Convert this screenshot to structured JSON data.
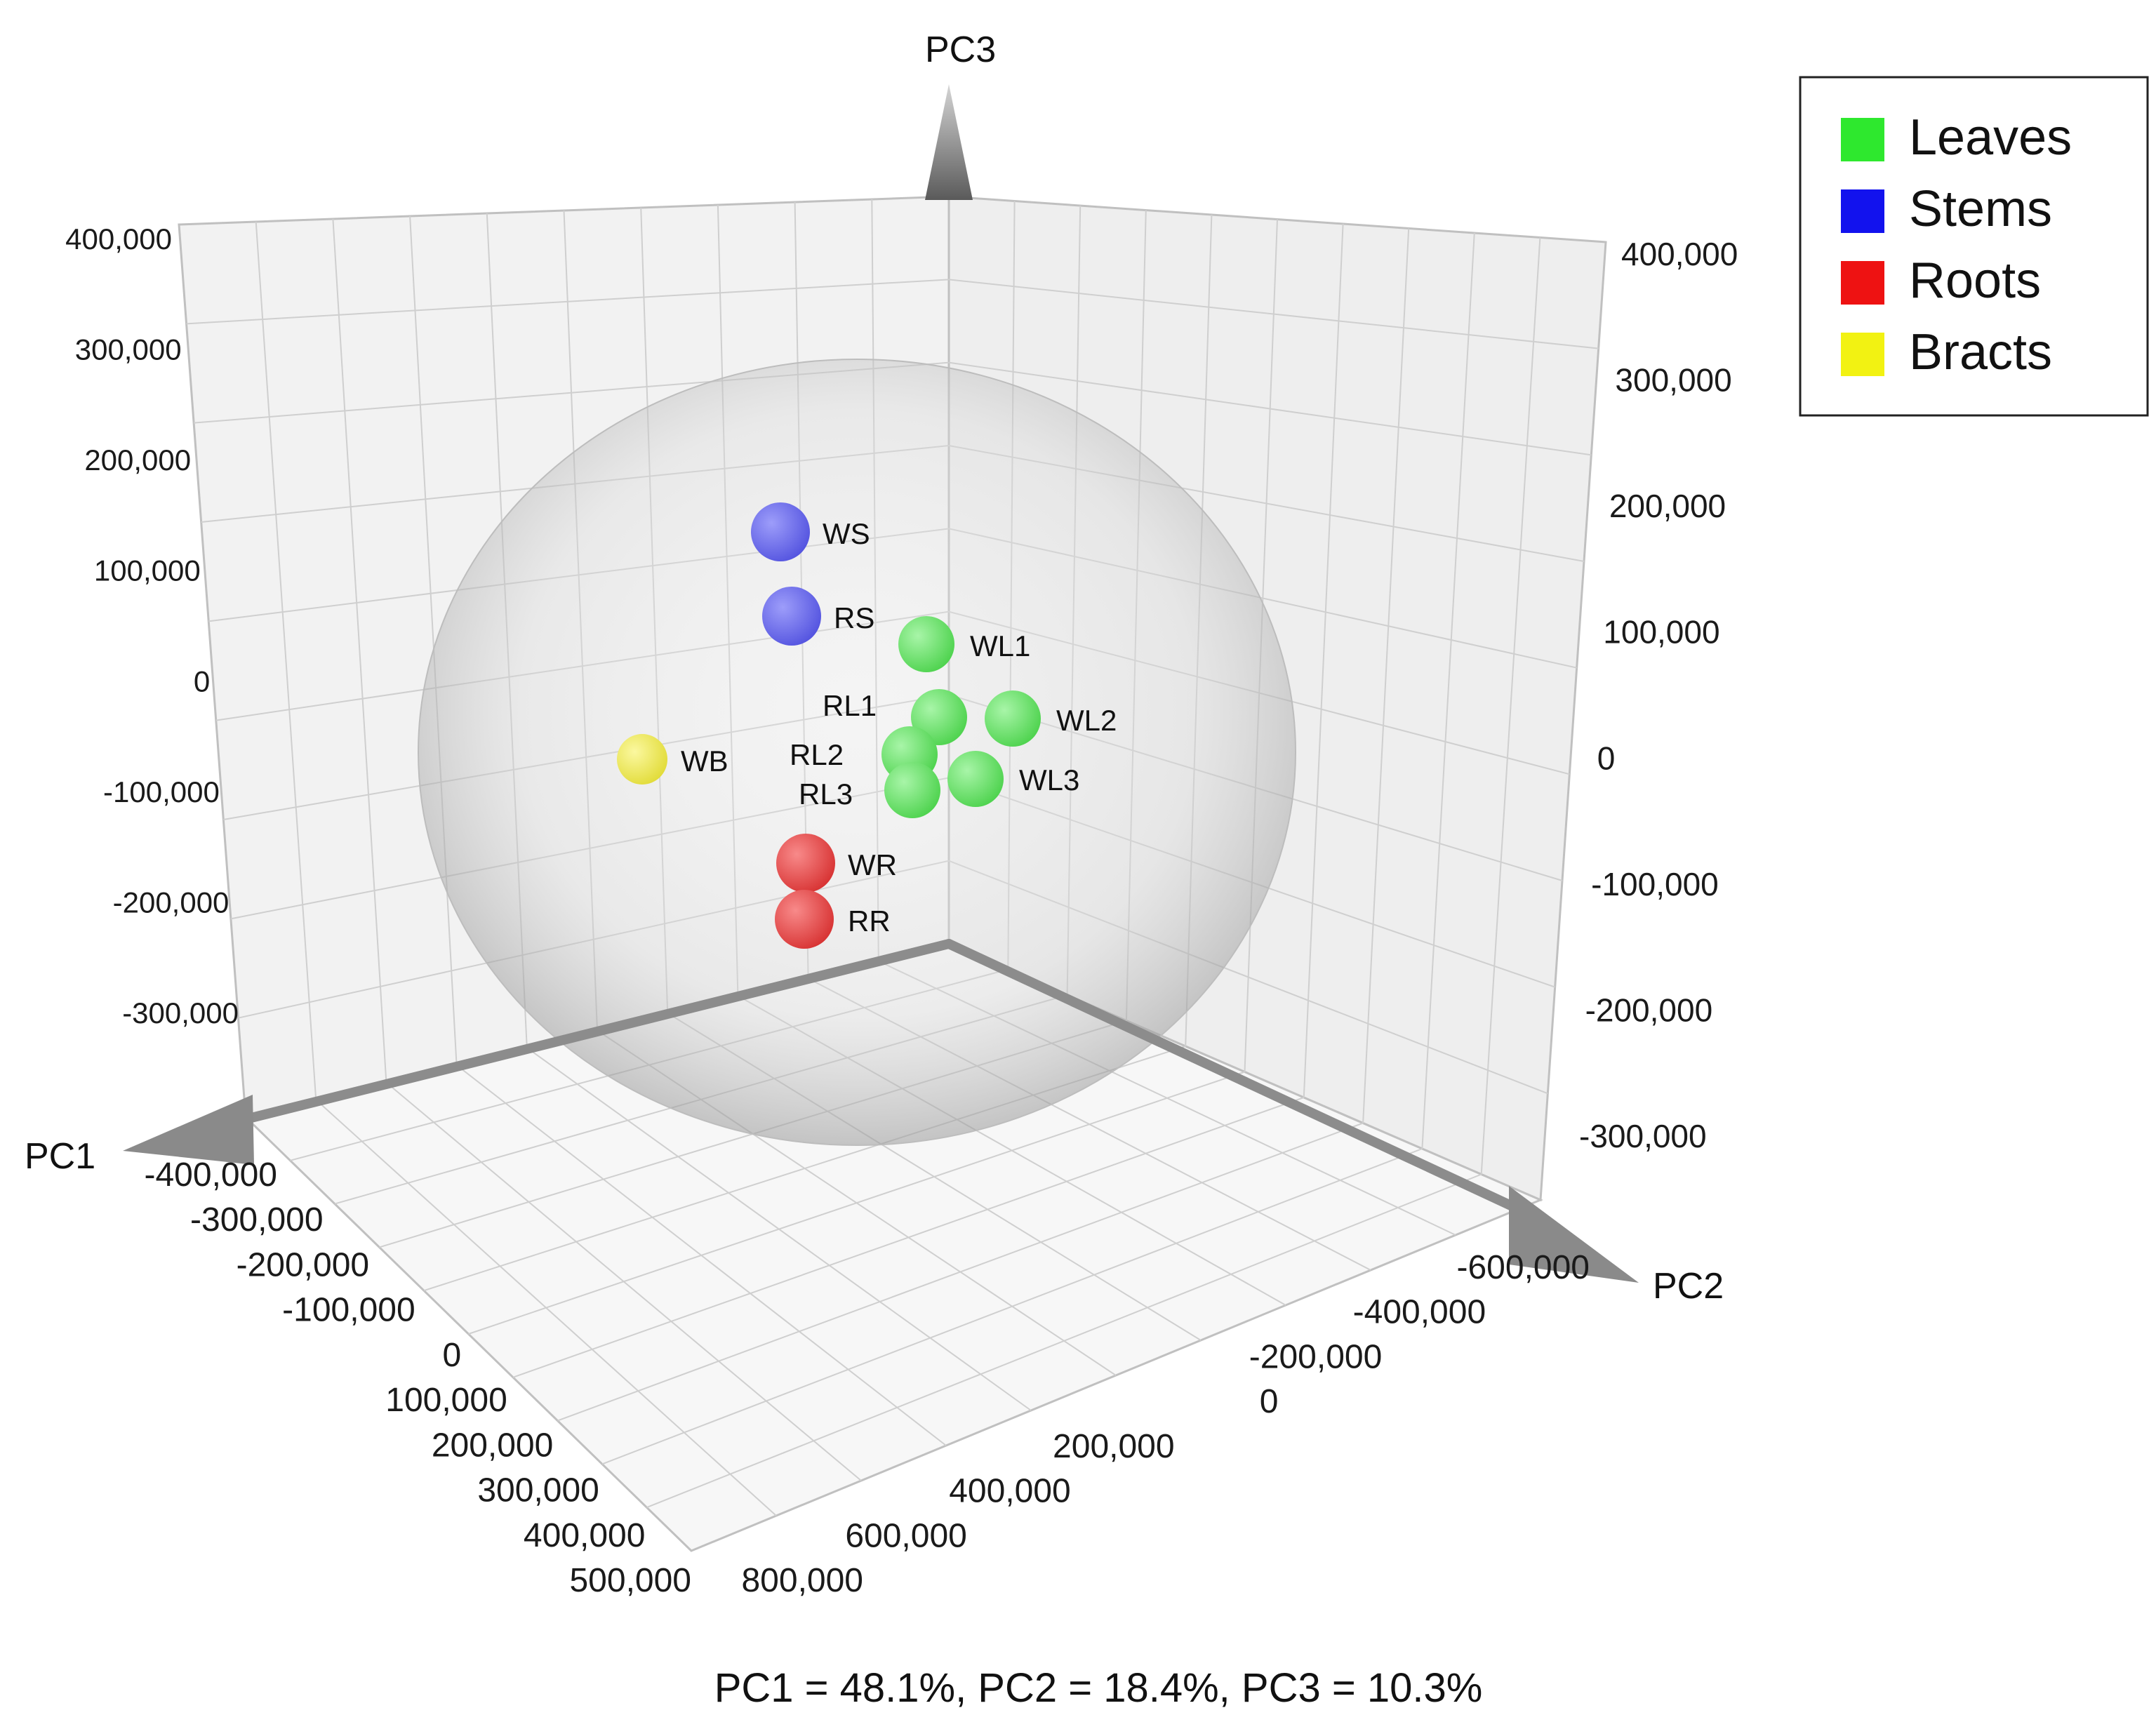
{
  "chart_data": {
    "type": "scatter",
    "dimensions": 3,
    "axes": {
      "x": {
        "name": "PC1",
        "ticks": [
          "-400,000",
          "-300,000",
          "-200,000",
          "-100,000",
          "0",
          "100,000",
          "200,000",
          "300,000",
          "400,000",
          "500,000"
        ]
      },
      "y": {
        "name": "PC2",
        "ticks": [
          "-600,000",
          "-400,000",
          "-200,000",
          "0",
          "200,000",
          "400,000",
          "600,000",
          "800,000"
        ]
      },
      "z": {
        "name": "PC3",
        "ticks_left": [
          "400,000",
          "300,000",
          "200,000",
          "100,000",
          "0",
          "-100,000",
          "-200,000",
          "-300,000"
        ],
        "ticks_right": [
          "400,000",
          "300,000",
          "200,000",
          "100,000",
          "0",
          "-100,000",
          "-200,000",
          "-300,000"
        ]
      }
    },
    "legend": {
      "placement": "top-right",
      "items": [
        {
          "label": "Leaves",
          "color": "#2ee82e"
        },
        {
          "label": "Stems",
          "color": "#1212ee"
        },
        {
          "label": "Roots",
          "color": "#ee1212"
        },
        {
          "label": "Bracts",
          "color": "#f2f212"
        }
      ]
    },
    "points": [
      {
        "label": "WS",
        "group": "Stems",
        "color": "#6a6af2"
      },
      {
        "label": "RS",
        "group": "Stems",
        "color": "#6a6af2"
      },
      {
        "label": "WL1",
        "group": "Leaves",
        "color": "#6ee86e"
      },
      {
        "label": "RL1",
        "group": "Leaves",
        "color": "#6ee86e"
      },
      {
        "label": "WL2",
        "group": "Leaves",
        "color": "#6ee86e"
      },
      {
        "label": "RL2",
        "group": "Leaves",
        "color": "#6ee86e"
      },
      {
        "label": "WL3",
        "group": "Leaves",
        "color": "#6ee86e"
      },
      {
        "label": "RL3",
        "group": "Leaves",
        "color": "#6ee86e"
      },
      {
        "label": "WB",
        "group": "Bracts",
        "color": "#f2ee5a"
      },
      {
        "label": "WR",
        "group": "Roots",
        "color": "#ee4a4a"
      },
      {
        "label": "RR",
        "group": "Roots",
        "color": "#ee4a4a"
      }
    ],
    "confidence_ellipsoid": true,
    "grid": true,
    "caption": "PC1 = 48.1%, PC2 = 18.4%, PC3 = 10.3%"
  }
}
